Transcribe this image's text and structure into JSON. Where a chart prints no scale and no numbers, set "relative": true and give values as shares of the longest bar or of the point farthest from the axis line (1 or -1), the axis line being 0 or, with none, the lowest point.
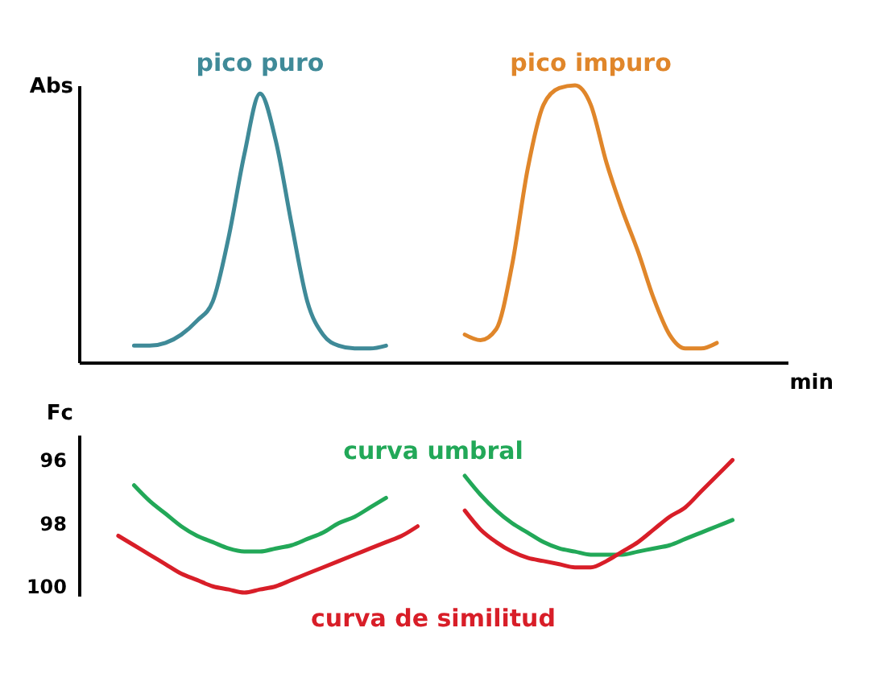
{
  "chart_data": [
    {
      "type": "line",
      "relative": true,
      "ylabel": "Abs",
      "xlabel": "min",
      "tick_labels": false,
      "grid": false,
      "legend": false,
      "categories": [
        null,
        null,
        null,
        null,
        null,
        null,
        null,
        null,
        null,
        null,
        null,
        null,
        null,
        null,
        null,
        null,
        null,
        null,
        null,
        null,
        null,
        null,
        null,
        null,
        null,
        null,
        null,
        null,
        null,
        null,
        null,
        null,
        null,
        null,
        null,
        null,
        null,
        null,
        null,
        null,
        null,
        null,
        null,
        null,
        null
      ],
      "series": [
        {
          "name": "pico puro",
          "color": "#3f8a98",
          "values": [
            null,
            null,
            null,
            0.06,
            0.06,
            0.07,
            0.1,
            0.15,
            0.22,
            0.45,
            0.75,
            0.97,
            0.8,
            0.5,
            0.22,
            0.1,
            0.06,
            0.05,
            0.05,
            0.06,
            null,
            null,
            null,
            null,
            null,
            null,
            null,
            null,
            null,
            null,
            null,
            null,
            null,
            null,
            null,
            null,
            null,
            null,
            null,
            null,
            null,
            null,
            null,
            null,
            null
          ]
        },
        {
          "name": "pico impuro",
          "color": "#e0862a",
          "values": [
            null,
            null,
            null,
            null,
            null,
            null,
            null,
            null,
            null,
            null,
            null,
            null,
            null,
            null,
            null,
            null,
            null,
            null,
            null,
            null,
            null,
            null,
            null,
            null,
            0.1,
            0.08,
            0.12,
            0.35,
            0.7,
            0.93,
            0.99,
            1.0,
            0.93,
            0.72,
            0.55,
            0.4,
            0.23,
            0.1,
            0.05,
            0.05,
            0.07,
            null,
            null,
            null,
            null
          ]
        }
      ]
    },
    {
      "type": "line",
      "ylabel": "Fc",
      "ylim": [
        100.3,
        95.2
      ],
      "yticks": [
        96,
        98,
        100
      ],
      "tick_labels": "y",
      "grid": false,
      "legend": false,
      "categories": [
        null,
        null,
        null,
        null,
        null,
        null,
        null,
        null,
        null,
        null,
        null,
        null,
        null,
        null,
        null,
        null,
        null,
        null,
        null,
        null,
        null,
        null,
        null,
        null,
        null,
        null,
        null,
        null,
        null,
        null,
        null,
        null,
        null,
        null,
        null,
        null,
        null,
        null,
        null,
        null,
        null,
        null,
        null,
        null,
        null
      ],
      "series": [
        {
          "name": "curva umbral",
          "color": "#22a858",
          "values": [
            null,
            null,
            null,
            96.8,
            97.3,
            97.7,
            98.1,
            98.4,
            98.6,
            98.8,
            98.9,
            98.9,
            98.8,
            98.7,
            98.5,
            98.3,
            98.0,
            97.8,
            97.5,
            97.2,
            null,
            null,
            null,
            null,
            96.5,
            97.1,
            97.6,
            98.0,
            98.3,
            98.6,
            98.8,
            98.9,
            99.0,
            99.0,
            99.0,
            98.9,
            98.8,
            98.7,
            98.5,
            98.3,
            98.1,
            97.9,
            null,
            null,
            null
          ]
        },
        {
          "name": "curva de similitud",
          "color": "#d81e28",
          "values": [
            null,
            null,
            98.4,
            98.7,
            99.0,
            99.3,
            99.6,
            99.8,
            100.0,
            100.1,
            100.2,
            100.1,
            100.0,
            99.8,
            99.6,
            99.4,
            99.2,
            99.0,
            98.8,
            98.6,
            98.4,
            98.1,
            null,
            null,
            97.6,
            98.2,
            98.6,
            98.9,
            99.1,
            99.2,
            99.3,
            99.4,
            99.4,
            99.2,
            98.9,
            98.6,
            98.2,
            97.8,
            97.5,
            97.0,
            96.5,
            96.0,
            null,
            null,
            null
          ]
        }
      ]
    }
  ]
}
